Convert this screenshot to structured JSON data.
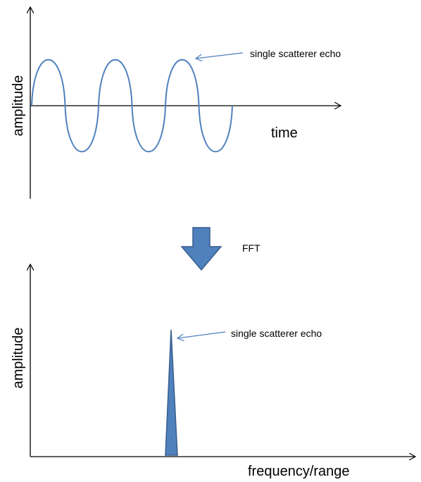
{
  "top_panel": {
    "y_label": "amplitude",
    "x_label": "time",
    "annotation": "single scatterer echo"
  },
  "transform": {
    "label": "FFT"
  },
  "bottom_panel": {
    "y_label": "amplitude",
    "x_label": "frequency/range",
    "annotation": "single scatterer echo"
  }
}
